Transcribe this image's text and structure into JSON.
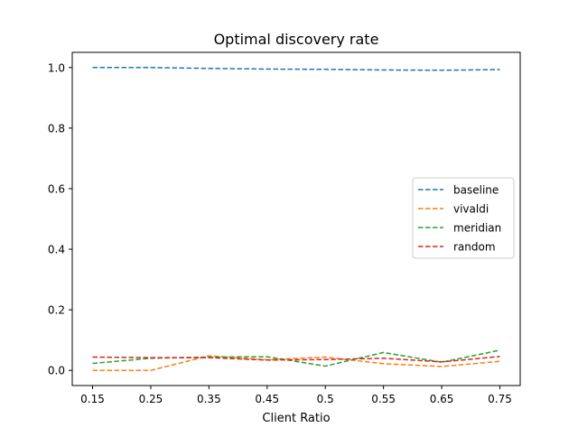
{
  "chart_data": {
    "type": "line",
    "title": "Optimal discovery rate",
    "xlabel": "Client Ratio",
    "ylabel": "",
    "categories": [
      "0.15",
      "0.25",
      "0.35",
      "0.45",
      "0.5",
      "0.55",
      "0.65",
      "0.75"
    ],
    "ylim": [
      -0.05,
      1.05
    ],
    "yticks": [
      0.0,
      0.2,
      0.4,
      0.6,
      0.8,
      1.0
    ],
    "ytick_labels": [
      "0.0",
      "0.2",
      "0.4",
      "0.6",
      "0.8",
      "1.0"
    ],
    "grid": false,
    "legend_position": "center-right",
    "line_style": "dashed",
    "series": [
      {
        "name": "baseline",
        "color": "#1f77b4",
        "values": [
          1.0,
          1.0,
          0.997,
          0.995,
          0.994,
          0.992,
          0.991,
          0.993
        ]
      },
      {
        "name": "vivaldi",
        "color": "#ff7f0e",
        "values": [
          0.0,
          0.0,
          0.048,
          0.035,
          0.044,
          0.022,
          0.013,
          0.03
        ]
      },
      {
        "name": "meridian",
        "color": "#2ca02c",
        "values": [
          0.023,
          0.04,
          0.044,
          0.045,
          0.014,
          0.059,
          0.027,
          0.067
        ]
      },
      {
        "name": "random",
        "color": "#d62728",
        "values": [
          0.044,
          0.042,
          0.042,
          0.034,
          0.036,
          0.04,
          0.028,
          0.046
        ]
      }
    ]
  }
}
